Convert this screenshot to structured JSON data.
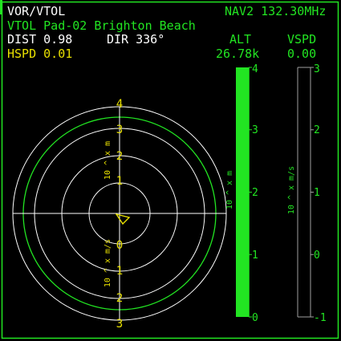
{
  "header": {
    "mode_label": "VOR/VTOL",
    "nav_label": "NAV2 132.30MHz",
    "target_label": "VTOL Pad-02 Brighton Beach",
    "dist_label": "DIST 0.98",
    "dir_label": "DIR 336°",
    "hspd_label": "HSPD 0.01",
    "alt_title": "ALT",
    "alt_value": "26.78k",
    "vspd_title": "VSPD",
    "vspd_value": "0.00"
  },
  "radar": {
    "upper_unit": "10 ^ x m",
    "lower_unit": "10 ^ x m/s",
    "upper_ticks": [
      "1",
      "2",
      "3",
      "4"
    ],
    "lower_ticks": [
      "0",
      "1",
      "2",
      "3"
    ],
    "heading_deg": 336,
    "speed_log10": 3
  },
  "alt_gauge": {
    "unit": "10 ^ x m",
    "ticks": [
      "0",
      "1",
      "2",
      "3",
      "4"
    ],
    "min": 0,
    "max": 4,
    "value_log10": 4.43
  },
  "vspd_gauge": {
    "unit": "10 ^ x m/s",
    "ticks": [
      "-1",
      "0",
      "1",
      "2",
      "3"
    ],
    "min": -1,
    "max": 3
  },
  "colors": {
    "frame": "#22e522",
    "white": "#ffffff",
    "green": "#22e522",
    "yellow": "#e8e000",
    "grey": "#a0a0a0"
  }
}
